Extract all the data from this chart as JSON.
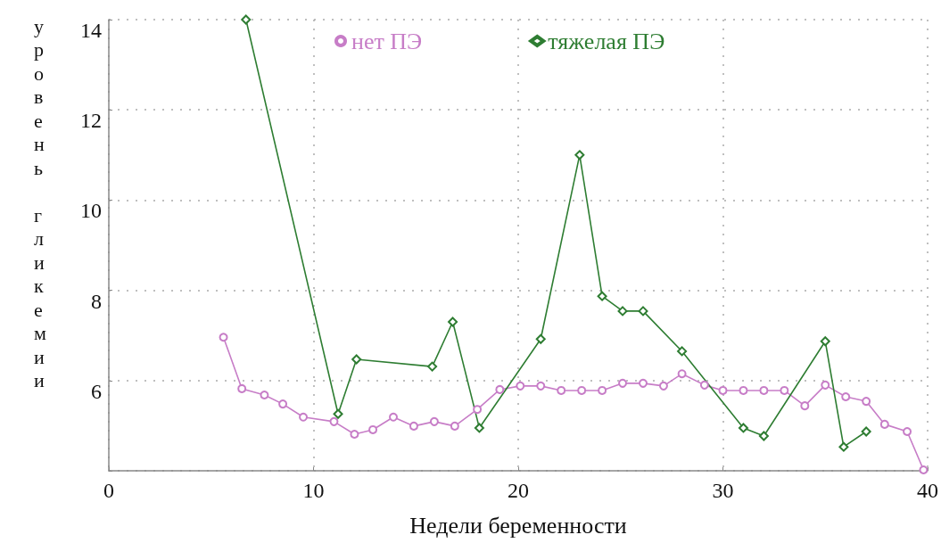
{
  "chart_data": {
    "type": "line",
    "xlabel": "Недели беременности",
    "ylabel": "уровень гликемии",
    "xlim": [
      0,
      40
    ],
    "xticks": [
      0,
      10,
      20,
      30,
      40
    ],
    "ylim": [
      4,
      14
    ],
    "yticks": [
      {
        "value": 4,
        "label": null
      },
      6,
      8,
      10,
      12,
      14
    ],
    "grid": true,
    "legend": "top",
    "line_style": "solid",
    "series": [
      {
        "name": "нет ПЭ",
        "color": "#c77dc7",
        "marker": "circle",
        "x": [
          5.6,
          6.5,
          7.6,
          8.5,
          9.5,
          11.0,
          12.0,
          12.9,
          13.9,
          14.9,
          15.9,
          16.9,
          18.0,
          19.1,
          20.1,
          21.1,
          22.1,
          23.1,
          24.1,
          25.1,
          26.1,
          27.1,
          28.0,
          29.1,
          30.0,
          31.0,
          32.0,
          33.0,
          34.0,
          35.0,
          36.0,
          37.0,
          37.9,
          39.0,
          39.8
        ],
        "values": [
          6.96,
          5.82,
          5.68,
          5.48,
          5.19,
          5.09,
          4.81,
          4.91,
          5.19,
          4.99,
          5.09,
          4.99,
          5.36,
          5.8,
          5.88,
          5.88,
          5.78,
          5.78,
          5.78,
          5.94,
          5.94,
          5.88,
          6.15,
          5.9,
          5.78,
          5.78,
          5.78,
          5.78,
          5.44,
          5.9,
          5.64,
          5.54,
          5.03,
          4.87,
          4.02
        ]
      },
      {
        "name": "тяжелая ПЭ",
        "color": "#2e7d32",
        "marker": "diamond",
        "x": [
          6.7,
          11.2,
          12.1,
          15.8,
          16.8,
          18.1,
          21.1,
          23.0,
          24.1,
          25.1,
          26.1,
          28.0,
          31.0,
          32.0,
          35.0,
          35.9,
          37.0
        ],
        "values": [
          14.0,
          5.26,
          6.47,
          6.31,
          7.3,
          4.95,
          6.92,
          11.0,
          7.87,
          7.54,
          7.54,
          6.65,
          4.95,
          4.77,
          6.87,
          4.53,
          4.87
        ]
      }
    ]
  }
}
